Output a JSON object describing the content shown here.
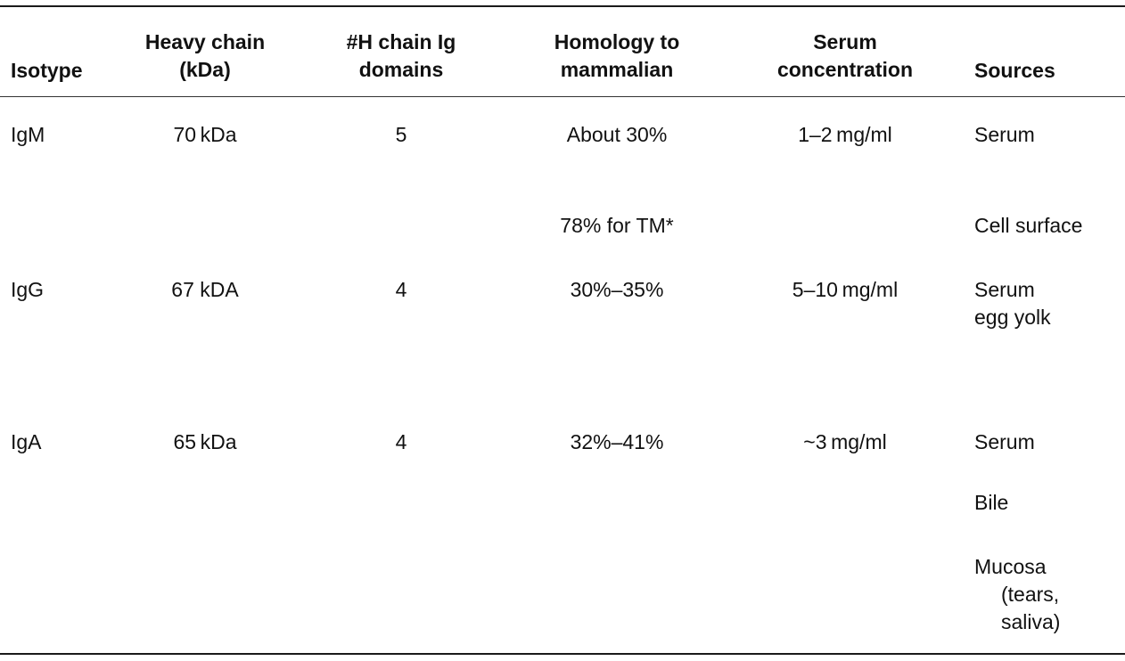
{
  "table": {
    "headers": {
      "isotype": "Isotype",
      "heavy_chain": "Heavy chain\n(kDa)",
      "h_chain_domains": "#H chain Ig\ndomains",
      "homology": "Homology to\nmammalian",
      "serum": "Serum\nconcentration",
      "sources": "Sources"
    },
    "rows": [
      {
        "isotype": "IgM",
        "heavy_chain": "70 kDa",
        "h_chain_domains": "5",
        "homology": "About 30%",
        "homology_extra": "78% for TM*",
        "serum": "1–2 mg/ml",
        "sources": [
          "Serum",
          "Cell surface"
        ]
      },
      {
        "isotype": "IgG",
        "heavy_chain": "67 kDA",
        "h_chain_domains": "4",
        "homology": "30%–35%",
        "serum": "5–10 mg/ml",
        "sources": [
          "Serum\negg yolk"
        ]
      },
      {
        "isotype": "IgA",
        "heavy_chain": "65 kDa",
        "h_chain_domains": "4",
        "homology": "32%–41%",
        "serum": "~3 mg/ml",
        "sources": [
          "Serum",
          "Bile",
          "Mucosa",
          "(tears,\nsaliva)"
        ]
      }
    ]
  }
}
